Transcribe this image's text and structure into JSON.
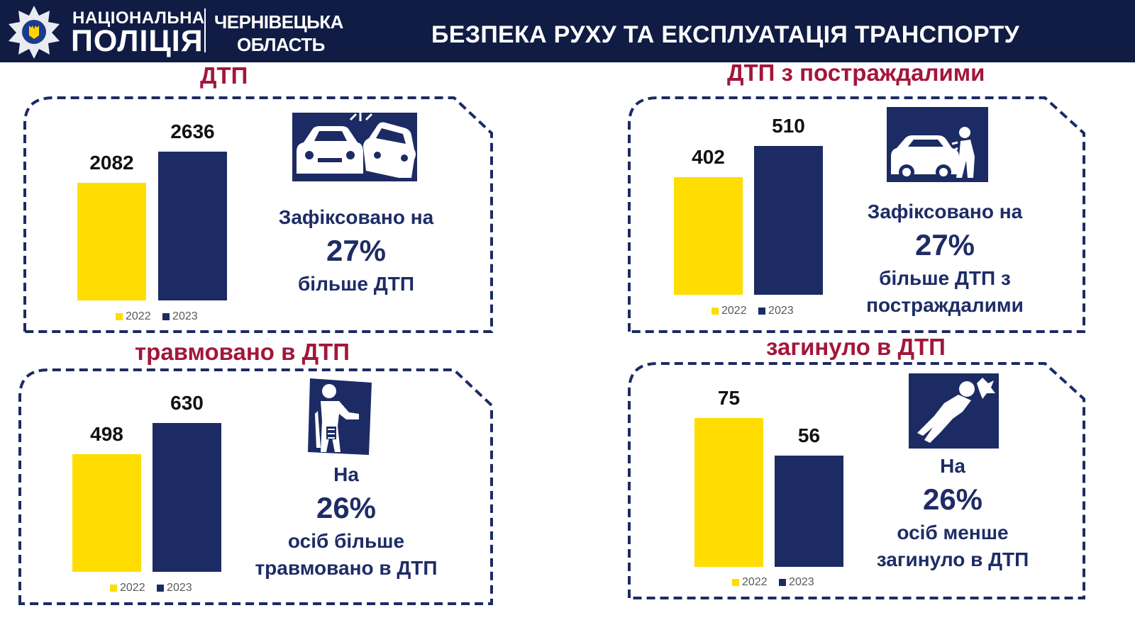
{
  "header": {
    "org_line1": "НАЦІОНАЛЬНА",
    "org_line2": "ПОЛІЦІЯ",
    "region_line1": "ЧЕРНІВЕЦЬКА",
    "region_line2": "ОБЛАСТЬ",
    "title": "БЕЗПЕКА РУХУ ТА ЕКСПЛУАТАЦІЯ ТРАНСПОРТУ"
  },
  "colors": {
    "header_bg": "#101c44",
    "bar_2022": "#ffdd00",
    "bar_2023": "#1c2b64",
    "title": "#a3163b",
    "text": "#1e2c66"
  },
  "legend": {
    "year1": "2022",
    "year2": "2023"
  },
  "panels": {
    "dtp": {
      "title": "ДТП",
      "line1": "Зафіксовано на",
      "pct": "27%",
      "line2": "більше ДТП",
      "line3": "",
      "icon": "car-crash-icon"
    },
    "injured_accidents": {
      "title": "ДТП з постраждалими",
      "line1": "Зафіксовано на",
      "pct": "27%",
      "line2": "більше ДТП з",
      "line3": "постраждалими",
      "icon": "car-hits-pedestrian-icon"
    },
    "injured": {
      "title": "травмовано в ДТП",
      "line1": "На",
      "pct": "26%",
      "line2": "осіб більше",
      "line3": "травмовано в ДТП",
      "icon": "injured-person-icon"
    },
    "killed": {
      "title": "загинуло в ДТП",
      "line1": "На",
      "pct": "26%",
      "line2": "осіб менше",
      "line3": "загинуло в ДТП",
      "icon": "fallen-person-icon"
    }
  },
  "chart_data": [
    {
      "type": "bar",
      "title": "ДТП",
      "categories": [
        "2022",
        "2023"
      ],
      "values": [
        2082,
        2636
      ],
      "value_labels": [
        "2082",
        "2636"
      ]
    },
    {
      "type": "bar",
      "title": "ДТП з постраждалими",
      "categories": [
        "2022",
        "2023"
      ],
      "values": [
        402,
        510
      ],
      "value_labels": [
        "402",
        "510"
      ]
    },
    {
      "type": "bar",
      "title": "травмовано в ДТП",
      "categories": [
        "2022",
        "2023"
      ],
      "values": [
        498,
        630
      ],
      "value_labels": [
        "498",
        "630"
      ]
    },
    {
      "type": "bar",
      "title": "загинуло в ДТП",
      "categories": [
        "2022",
        "2023"
      ],
      "values": [
        75,
        56
      ],
      "value_labels": [
        "75",
        "56"
      ]
    }
  ]
}
